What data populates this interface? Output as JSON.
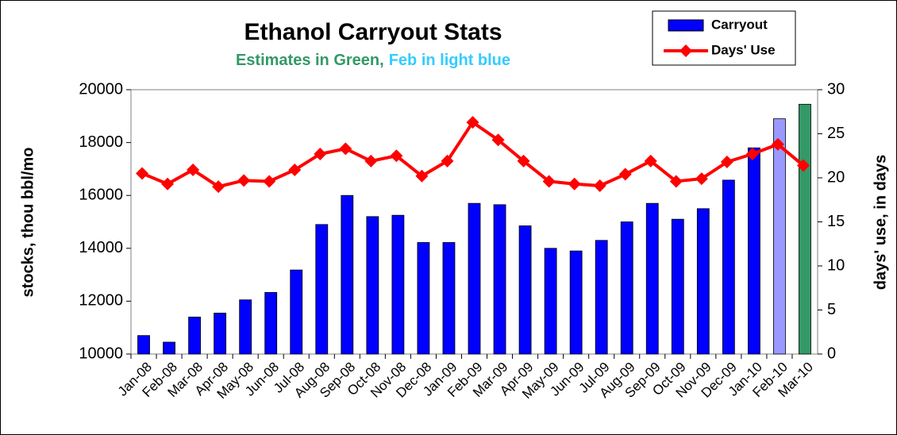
{
  "chart_data": {
    "type": "bar_line",
    "title": "Ethanol Carryout Stats",
    "subtitle": [
      {
        "text": "Estimates in Green,",
        "color": "#339966"
      },
      {
        "text": "Feb in light blue",
        "color": "#33ccff"
      }
    ],
    "ylabel": "stocks, thou bbl/mo",
    "y2label": "days' use, in days",
    "categories": [
      "Jan-08",
      "Feb-08",
      "Mar-08",
      "Apr-08",
      "May-08",
      "Jun-08",
      "Jul-08",
      "Aug-08",
      "Sep-08",
      "Oct-08",
      "Nov-08",
      "Dec-08",
      "Jan-09",
      "Feb-09",
      "Mar-09",
      "Apr-09",
      "May-09",
      "Jun-09",
      "Jul-09",
      "Aug-09",
      "Sep-09",
      "Oct-09",
      "Nov-09",
      "Dec-09",
      "Jan-10",
      "Feb-10",
      "Mar-10"
    ],
    "series": [
      {
        "name": "Carryout",
        "type": "bar",
        "color": "#0000ff",
        "colors": [
          "#0000ff",
          "#0000ff",
          "#0000ff",
          "#0000ff",
          "#0000ff",
          "#0000ff",
          "#0000ff",
          "#0000ff",
          "#0000ff",
          "#0000ff",
          "#0000ff",
          "#0000ff",
          "#0000ff",
          "#0000ff",
          "#0000ff",
          "#0000ff",
          "#0000ff",
          "#0000ff",
          "#0000ff",
          "#0000ff",
          "#0000ff",
          "#0000ff",
          "#0000ff",
          "#0000ff",
          "#0000ff",
          "#9999ff",
          "#339966"
        ],
        "values": [
          10700,
          10450,
          11400,
          11550,
          12050,
          12330,
          13180,
          14900,
          16000,
          15200,
          15250,
          14220,
          14220,
          15700,
          15650,
          14850,
          14000,
          13900,
          14300,
          15000,
          15700,
          15100,
          15500,
          16580,
          17800,
          18900,
          19450
        ]
      },
      {
        "name": "Days' Use",
        "type": "line",
        "color": "#ff0000",
        "axis": "y2",
        "values": [
          20.5,
          19.3,
          20.9,
          19.0,
          19.7,
          19.6,
          20.9,
          22.7,
          23.3,
          21.9,
          22.5,
          20.2,
          21.9,
          26.3,
          24.3,
          21.9,
          19.6,
          19.3,
          19.1,
          20.4,
          21.9,
          19.6,
          19.9,
          21.8,
          22.7,
          23.8,
          21.4
        ]
      }
    ],
    "ylim": [
      10000,
      20000
    ],
    "yticks": [
      10000,
      12000,
      14000,
      16000,
      18000,
      20000
    ],
    "y2lim": [
      0,
      30
    ],
    "y2ticks": [
      0,
      5,
      10,
      15,
      20,
      25,
      30
    ],
    "legend": "top-right"
  }
}
